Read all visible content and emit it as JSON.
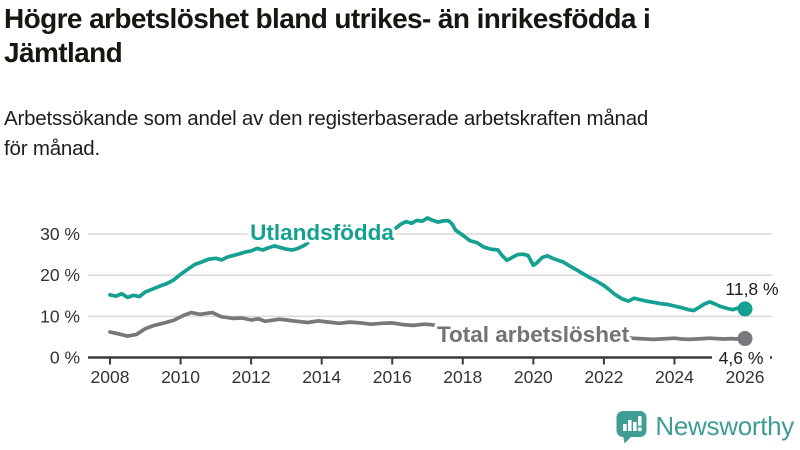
{
  "header": {
    "title": "Högre arbetslöshet bland utrikes- än inrikesfödda i\nJämtland",
    "subtitle": "Arbetssökande som andel av den registerbaserade arbetskraften månad\nför månad."
  },
  "chart_data": {
    "type": "line",
    "title": "Högre arbetslöshet bland utrikes- än inrikesfödda i Jämtland",
    "xlabel": "",
    "ylabel": "",
    "grid": "horizontal",
    "x_axis": {
      "ticks": [
        2008,
        2010,
        2012,
        2014,
        2016,
        2018,
        2020,
        2022,
        2024,
        2026
      ],
      "range": [
        2008,
        2026
      ]
    },
    "y_axis": {
      "tick_values": [
        0,
        10,
        20,
        30
      ],
      "tick_labels": [
        "0 %",
        "10 %",
        "20 %",
        "30 %"
      ],
      "range": [
        0,
        36
      ],
      "unit": "%"
    },
    "series": [
      {
        "name": "Utlandsfödda",
        "color": "#14a192",
        "end_value": 11.8,
        "end_label": "11,8 %",
        "label_gap": [
          2013.62,
          2016.05
        ],
        "points": [
          [
            2008.0,
            15.2
          ],
          [
            2008.17,
            14.9
          ],
          [
            2008.33,
            15.5
          ],
          [
            2008.5,
            14.6
          ],
          [
            2008.67,
            15.1
          ],
          [
            2008.83,
            14.8
          ],
          [
            2009.0,
            15.9
          ],
          [
            2009.2,
            16.6
          ],
          [
            2009.4,
            17.3
          ],
          [
            2009.6,
            17.9
          ],
          [
            2009.8,
            18.8
          ],
          [
            2010.0,
            20.2
          ],
          [
            2010.2,
            21.4
          ],
          [
            2010.4,
            22.6
          ],
          [
            2010.6,
            23.2
          ],
          [
            2010.8,
            23.9
          ],
          [
            2011.0,
            24.1
          ],
          [
            2011.17,
            23.7
          ],
          [
            2011.33,
            24.4
          ],
          [
            2011.5,
            24.8
          ],
          [
            2011.67,
            25.2
          ],
          [
            2011.83,
            25.6
          ],
          [
            2012.0,
            25.9
          ],
          [
            2012.17,
            26.5
          ],
          [
            2012.33,
            26.1
          ],
          [
            2012.5,
            26.7
          ],
          [
            2012.67,
            27.1
          ],
          [
            2012.83,
            26.7
          ],
          [
            2013.0,
            26.3
          ],
          [
            2013.17,
            26.1
          ],
          [
            2013.33,
            26.5
          ],
          [
            2013.5,
            27.2
          ],
          [
            2013.6,
            27.8
          ],
          [
            2013.8,
            28.1
          ],
          [
            2014.1,
            28.5
          ],
          [
            2014.4,
            29.0
          ],
          [
            2014.7,
            29.5
          ],
          [
            2015.0,
            30.1
          ],
          [
            2015.3,
            30.7
          ],
          [
            2015.6,
            31.2
          ],
          [
            2015.9,
            31.6
          ],
          [
            2016.1,
            31.4
          ],
          [
            2016.25,
            32.4
          ],
          [
            2016.4,
            33.0
          ],
          [
            2016.55,
            32.6
          ],
          [
            2016.7,
            33.3
          ],
          [
            2016.85,
            33.1
          ],
          [
            2017.0,
            33.9
          ],
          [
            2017.15,
            33.3
          ],
          [
            2017.3,
            32.9
          ],
          [
            2017.45,
            33.2
          ],
          [
            2017.6,
            33.2
          ],
          [
            2017.7,
            32.4
          ],
          [
            2017.8,
            30.9
          ],
          [
            2018.0,
            29.7
          ],
          [
            2018.2,
            28.4
          ],
          [
            2018.4,
            27.9
          ],
          [
            2018.6,
            26.8
          ],
          [
            2018.8,
            26.3
          ],
          [
            2019.0,
            26.1
          ],
          [
            2019.1,
            24.9
          ],
          [
            2019.25,
            23.6
          ],
          [
            2019.4,
            24.3
          ],
          [
            2019.55,
            25.0
          ],
          [
            2019.7,
            25.1
          ],
          [
            2019.85,
            24.8
          ],
          [
            2020.0,
            22.4
          ],
          [
            2020.1,
            23.0
          ],
          [
            2020.25,
            24.3
          ],
          [
            2020.4,
            24.7
          ],
          [
            2020.55,
            24.1
          ],
          [
            2020.7,
            23.6
          ],
          [
            2020.85,
            23.2
          ],
          [
            2021.0,
            22.4
          ],
          [
            2021.2,
            21.4
          ],
          [
            2021.4,
            20.4
          ],
          [
            2021.6,
            19.4
          ],
          [
            2021.8,
            18.5
          ],
          [
            2022.0,
            17.5
          ],
          [
            2022.15,
            16.5
          ],
          [
            2022.3,
            15.4
          ],
          [
            2022.5,
            14.3
          ],
          [
            2022.7,
            13.7
          ],
          [
            2022.85,
            14.4
          ],
          [
            2023.0,
            14.1
          ],
          [
            2023.2,
            13.7
          ],
          [
            2023.4,
            13.4
          ],
          [
            2023.6,
            13.1
          ],
          [
            2023.8,
            12.9
          ],
          [
            2024.0,
            12.5
          ],
          [
            2024.2,
            12.1
          ],
          [
            2024.4,
            11.6
          ],
          [
            2024.55,
            11.4
          ],
          [
            2024.7,
            12.2
          ],
          [
            2024.85,
            13.0
          ],
          [
            2025.0,
            13.5
          ],
          [
            2025.15,
            13.0
          ],
          [
            2025.3,
            12.4
          ],
          [
            2025.5,
            11.9
          ],
          [
            2025.65,
            11.6
          ],
          [
            2025.8,
            12.0
          ],
          [
            2025.9,
            11.7
          ],
          [
            2026.0,
            11.8
          ]
        ]
      },
      {
        "name": "Total arbetslöshet",
        "color": "#78787c",
        "end_value": 4.6,
        "end_label": "4,6 %",
        "label_gap": [
          2017.45,
          2022.55
        ],
        "points": [
          [
            2008.0,
            6.2
          ],
          [
            2008.2,
            5.8
          ],
          [
            2008.5,
            5.2
          ],
          [
            2008.75,
            5.6
          ],
          [
            2009.0,
            7.0
          ],
          [
            2009.25,
            7.8
          ],
          [
            2009.5,
            8.3
          ],
          [
            2009.8,
            9.0
          ],
          [
            2010.1,
            10.3
          ],
          [
            2010.3,
            10.9
          ],
          [
            2010.55,
            10.5
          ],
          [
            2010.9,
            10.9
          ],
          [
            2011.15,
            9.9
          ],
          [
            2011.5,
            9.5
          ],
          [
            2011.75,
            9.6
          ],
          [
            2012.0,
            9.1
          ],
          [
            2012.2,
            9.4
          ],
          [
            2012.4,
            8.8
          ],
          [
            2012.8,
            9.3
          ],
          [
            2013.0,
            9.1
          ],
          [
            2013.2,
            8.9
          ],
          [
            2013.6,
            8.5
          ],
          [
            2013.9,
            8.9
          ],
          [
            2014.2,
            8.6
          ],
          [
            2014.5,
            8.3
          ],
          [
            2014.8,
            8.6
          ],
          [
            2015.1,
            8.4
          ],
          [
            2015.4,
            8.1
          ],
          [
            2015.7,
            8.3
          ],
          [
            2016.0,
            8.4
          ],
          [
            2016.3,
            8.0
          ],
          [
            2016.6,
            7.8
          ],
          [
            2016.9,
            8.1
          ],
          [
            2017.1,
            8.0
          ],
          [
            2017.4,
            7.4
          ],
          [
            2017.7,
            7.2
          ],
          [
            2018.0,
            7.0
          ],
          [
            2018.4,
            6.7
          ],
          [
            2018.8,
            6.5
          ],
          [
            2019.2,
            6.3
          ],
          [
            2019.6,
            6.2
          ],
          [
            2020.0,
            6.1
          ],
          [
            2020.4,
            6.3
          ],
          [
            2020.8,
            6.1
          ],
          [
            2021.2,
            5.8
          ],
          [
            2021.6,
            5.5
          ],
          [
            2022.0,
            5.2
          ],
          [
            2022.3,
            5.0
          ],
          [
            2022.6,
            4.8
          ],
          [
            2022.8,
            4.7
          ],
          [
            2023.0,
            4.6
          ],
          [
            2023.2,
            4.5
          ],
          [
            2023.4,
            4.4
          ],
          [
            2023.6,
            4.5
          ],
          [
            2023.8,
            4.6
          ],
          [
            2024.0,
            4.7
          ],
          [
            2024.2,
            4.5
          ],
          [
            2024.4,
            4.4
          ],
          [
            2024.6,
            4.5
          ],
          [
            2024.8,
            4.6
          ],
          [
            2025.0,
            4.7
          ],
          [
            2025.2,
            4.6
          ],
          [
            2025.4,
            4.5
          ],
          [
            2025.6,
            4.6
          ],
          [
            2025.8,
            4.5
          ],
          [
            2026.0,
            4.6
          ]
        ]
      }
    ]
  },
  "branding": {
    "logo_text": "Newsworthy",
    "logo_color": "#3f9d93"
  },
  "colors": {
    "accent_teal": "#14a192",
    "series_gray": "#78787c",
    "grid": "#dadada",
    "axis": "#3a3a3a",
    "tick_text": "#333333",
    "value_text": "#1c1c1c"
  }
}
